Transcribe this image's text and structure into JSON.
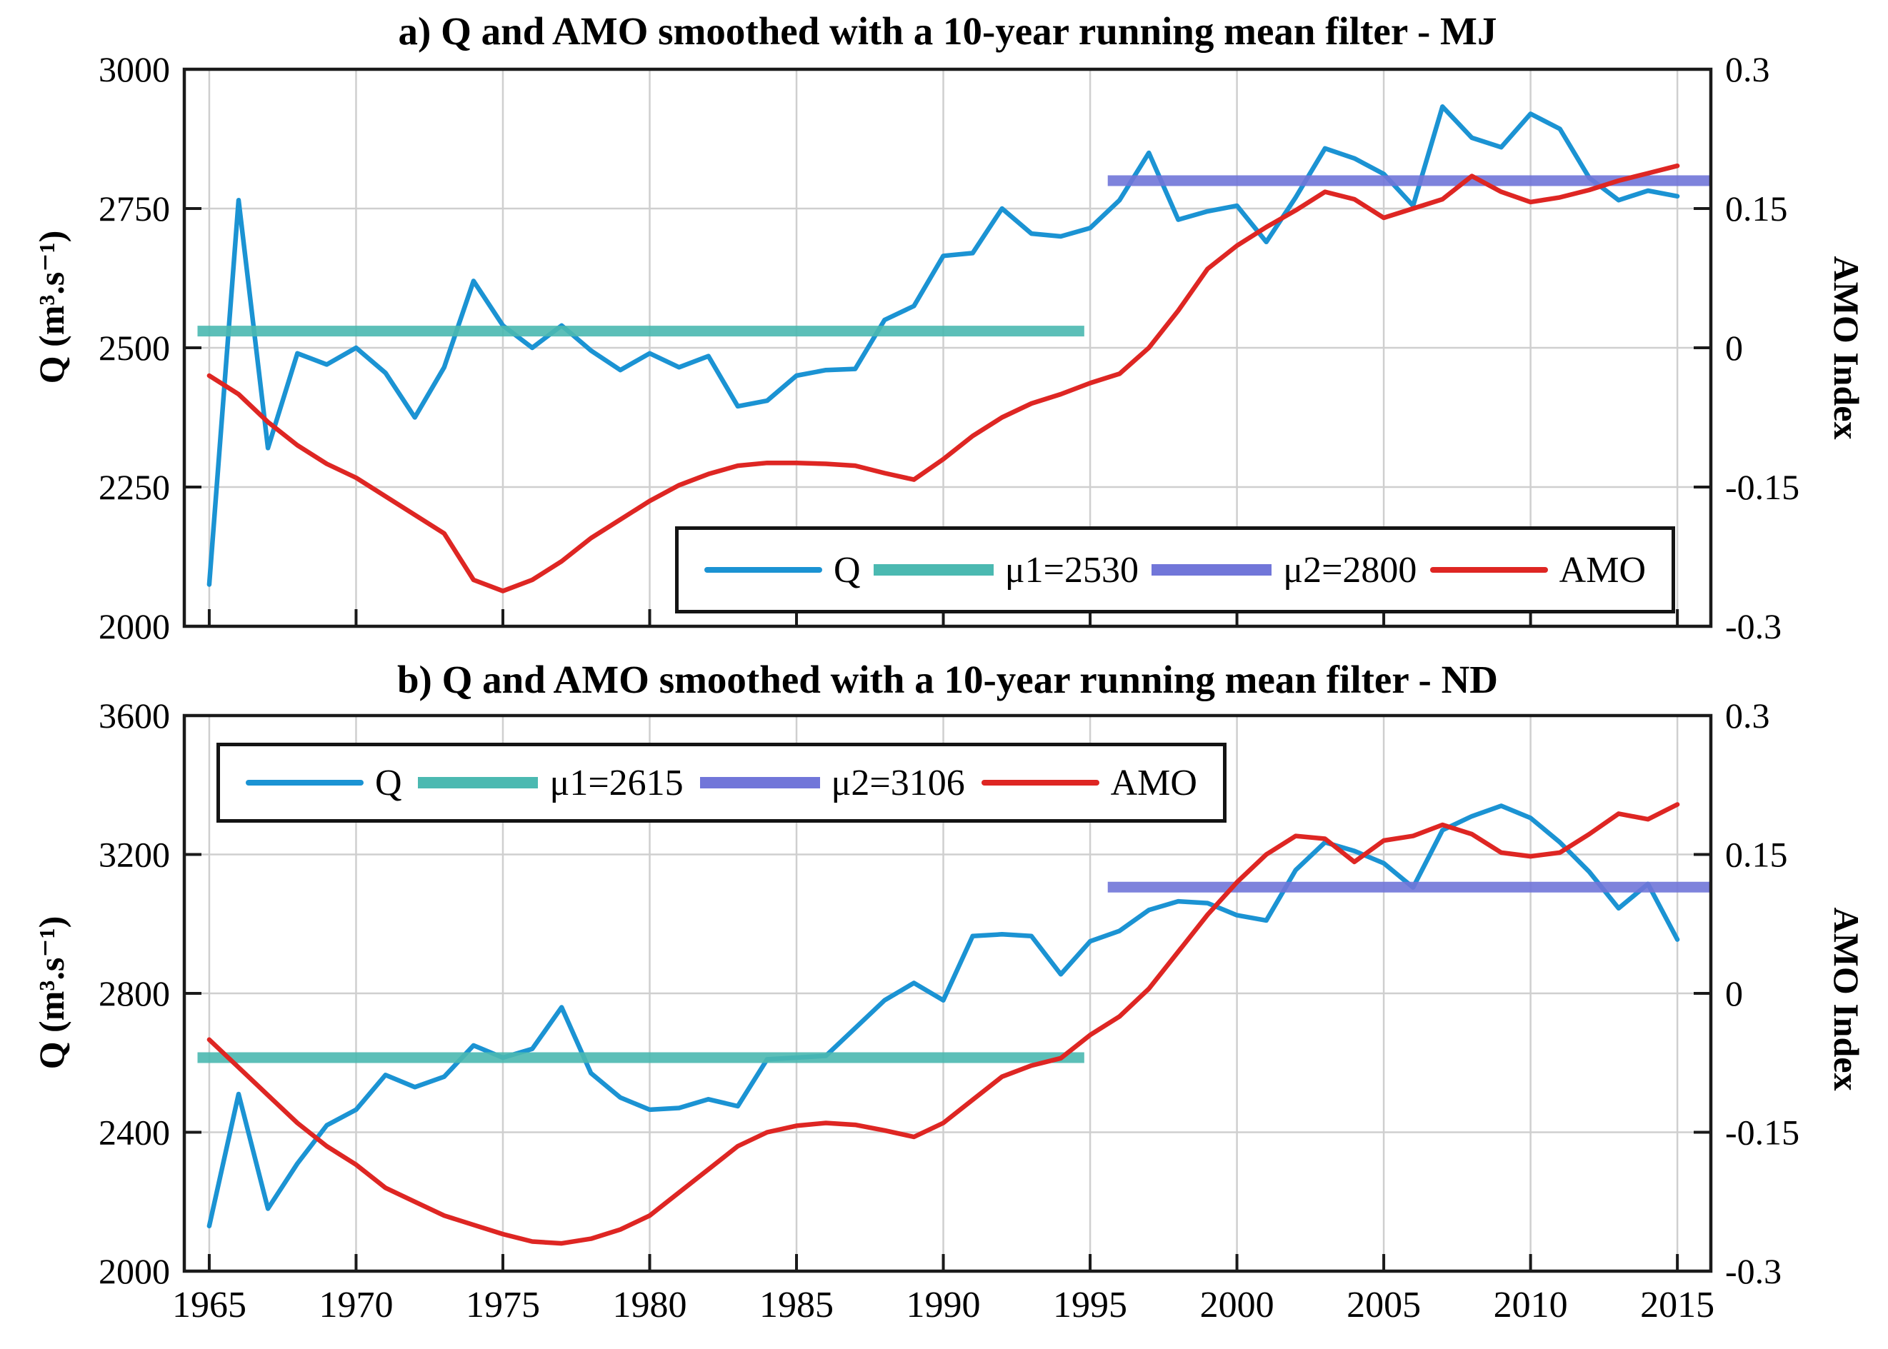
{
  "figure": {
    "background": "#FFFFFF"
  },
  "colors": {
    "q": "#1B93D3",
    "mu1": "#4BB9B1",
    "mu2": "#7176D9",
    "amo": "#DE2623",
    "grid": "#CFCFCF",
    "axis": "#1A1A1A",
    "text": "#000000"
  },
  "years": [
    1965,
    1966,
    1967,
    1968,
    1969,
    1970,
    1971,
    1972,
    1973,
    1974,
    1975,
    1976,
    1977,
    1978,
    1979,
    1980,
    1981,
    1982,
    1983,
    1984,
    1985,
    1986,
    1987,
    1988,
    1989,
    1990,
    1991,
    1992,
    1993,
    1994,
    1995,
    1996,
    1997,
    1998,
    1999,
    2000,
    2001,
    2002,
    2003,
    2004,
    2005,
    2006,
    2007,
    2008,
    2009,
    2010,
    2011,
    2012,
    2013,
    2014,
    2015
  ],
  "chart_data": [
    {
      "type": "line",
      "title": "a) Q and AMO smoothed with a 10-year running mean filter - MJ",
      "ylabel": "Q (m³.s⁻¹)",
      "y2label": "AMO Index",
      "xlim": [
        1964.15,
        2016.14
      ],
      "ylim": [
        2000,
        3000
      ],
      "y2lim": [
        -0.3,
        0.3
      ],
      "grid": true,
      "legend_position": "bottom-right-inside",
      "x_ticks": {
        "values": [
          1965,
          1970,
          1975,
          1980,
          1985,
          1990,
          1995,
          2000,
          2005,
          2010,
          2015
        ],
        "labels": [
          "1965",
          "1970",
          "1975",
          "1980",
          "1985",
          "1990",
          "1995",
          "2000",
          "2005",
          "2010",
          "2015"
        ]
      },
      "y_ticks": {
        "values": [
          3000,
          2750,
          2500,
          2250,
          2000
        ],
        "labels": [
          "3000",
          "2750",
          "2500",
          "2250",
          "2000"
        ]
      },
      "y2_ticks": {
        "values": [
          0.3,
          0.15,
          0,
          -0.15,
          -0.3
        ],
        "labels": [
          "0.3",
          "0.15",
          "0",
          "-0.15",
          "-0.3"
        ]
      },
      "series": [
        {
          "name": "Q",
          "color_key": "q",
          "axis": "y1",
          "kind": "line",
          "values": [
            2075,
            2765,
            2320,
            2490,
            2470,
            2500,
            2455,
            2375,
            2465,
            2620,
            2540,
            2500,
            2540,
            2495,
            2460,
            2490,
            2465,
            2485,
            2395,
            2405,
            2450,
            2460,
            2462,
            2550,
            2575,
            2665,
            2670,
            2750,
            2705,
            2700,
            2715,
            2765,
            2850,
            2730,
            2745,
            2755,
            2690,
            2770,
            2858,
            2840,
            2812,
            2755,
            2933,
            2877,
            2860,
            2920,
            2893,
            2805,
            2765,
            2782,
            2772
          ]
        },
        {
          "name": "μ1=2530",
          "color_key": "mu1",
          "axis": "y1",
          "kind": "mean-segment",
          "value": 2530,
          "span": [
            1964.6,
            1994.8
          ]
        },
        {
          "name": "μ2=2800",
          "color_key": "mu2",
          "axis": "y1",
          "kind": "mean-segment",
          "value": 2800,
          "span": [
            1995.6,
            2016.1
          ]
        },
        {
          "name": "AMO",
          "color_key": "amo",
          "axis": "y2",
          "kind": "line",
          "values": [
            -0.03,
            -0.05,
            -0.08,
            -0.105,
            -0.125,
            -0.14,
            -0.16,
            -0.18,
            -0.2,
            -0.25,
            -0.262,
            -0.25,
            -0.23,
            -0.205,
            -0.185,
            -0.165,
            -0.148,
            -0.136,
            -0.127,
            -0.124,
            -0.124,
            -0.125,
            -0.127,
            -0.135,
            -0.142,
            -0.12,
            -0.095,
            -0.075,
            -0.06,
            -0.05,
            -0.038,
            -0.028,
            0.0,
            0.04,
            0.085,
            0.11,
            0.13,
            0.148,
            0.168,
            0.16,
            0.14,
            0.15,
            0.16,
            0.185,
            0.168,
            0.157,
            0.162,
            0.17,
            0.18,
            0.188,
            0.196
          ]
        }
      ]
    },
    {
      "type": "line",
      "title": "b) Q and AMO smoothed with a 10-year running mean filter - ND",
      "ylabel": "Q (m³.s⁻¹)",
      "y2label": "AMO Index",
      "xlim": [
        1964.15,
        2016.14
      ],
      "ylim": [
        2000,
        3600
      ],
      "y2lim": [
        -0.3,
        0.3
      ],
      "grid": true,
      "legend_position": "top-left-inside",
      "x_ticks": {
        "values": [
          1965,
          1970,
          1975,
          1980,
          1985,
          1990,
          1995,
          2000,
          2005,
          2010,
          2015
        ],
        "labels": [
          "1965",
          "1970",
          "1975",
          "1980",
          "1985",
          "1990",
          "1995",
          "2000",
          "2005",
          "2010",
          "2015"
        ]
      },
      "y_ticks": {
        "values": [
          3600,
          3200,
          2800,
          2400,
          2000
        ],
        "labels": [
          "3600",
          "3200",
          "2800",
          "2400",
          "2000"
        ]
      },
      "y2_ticks": {
        "values": [
          0.3,
          0.15,
          0,
          -0.15,
          -0.3
        ],
        "labels": [
          "0.3",
          "0.15",
          "0",
          "-0.15",
          "-0.3"
        ]
      },
      "series": [
        {
          "name": "Q",
          "color_key": "q",
          "axis": "y1",
          "kind": "line",
          "values": [
            2130,
            2510,
            2180,
            2310,
            2420,
            2465,
            2565,
            2530,
            2560,
            2650,
            2615,
            2640,
            2760,
            2570,
            2500,
            2465,
            2470,
            2495,
            2475,
            2610,
            2615,
            2620,
            2700,
            2780,
            2830,
            2780,
            2965,
            2970,
            2965,
            2855,
            2950,
            2980,
            3040,
            3065,
            3060,
            3025,
            3010,
            3155,
            3235,
            3210,
            3175,
            3105,
            3270,
            3310,
            3340,
            3305,
            3235,
            3150,
            3045,
            3115,
            2955
          ]
        },
        {
          "name": "μ1=2615",
          "color_key": "mu1",
          "axis": "y1",
          "kind": "mean-segment",
          "value": 2615,
          "span": [
            1964.6,
            1994.8
          ]
        },
        {
          "name": "μ2=3106",
          "color_key": "mu2",
          "axis": "y1",
          "kind": "mean-segment",
          "value": 3106,
          "span": [
            1995.6,
            2016.1
          ]
        },
        {
          "name": "AMO",
          "color_key": "amo",
          "axis": "y2",
          "kind": "line",
          "values": [
            -0.05,
            -0.08,
            -0.11,
            -0.14,
            -0.165,
            -0.185,
            -0.21,
            -0.225,
            -0.24,
            -0.25,
            -0.26,
            -0.268,
            -0.27,
            -0.265,
            -0.255,
            -0.24,
            -0.215,
            -0.19,
            -0.165,
            -0.15,
            -0.143,
            -0.14,
            -0.142,
            -0.148,
            -0.155,
            -0.14,
            -0.115,
            -0.09,
            -0.078,
            -0.07,
            -0.045,
            -0.025,
            0.005,
            0.045,
            0.085,
            0.12,
            0.15,
            0.17,
            0.167,
            0.142,
            0.165,
            0.17,
            0.182,
            0.172,
            0.152,
            0.148,
            0.152,
            0.172,
            0.194,
            0.188,
            0.204
          ]
        }
      ]
    }
  ]
}
